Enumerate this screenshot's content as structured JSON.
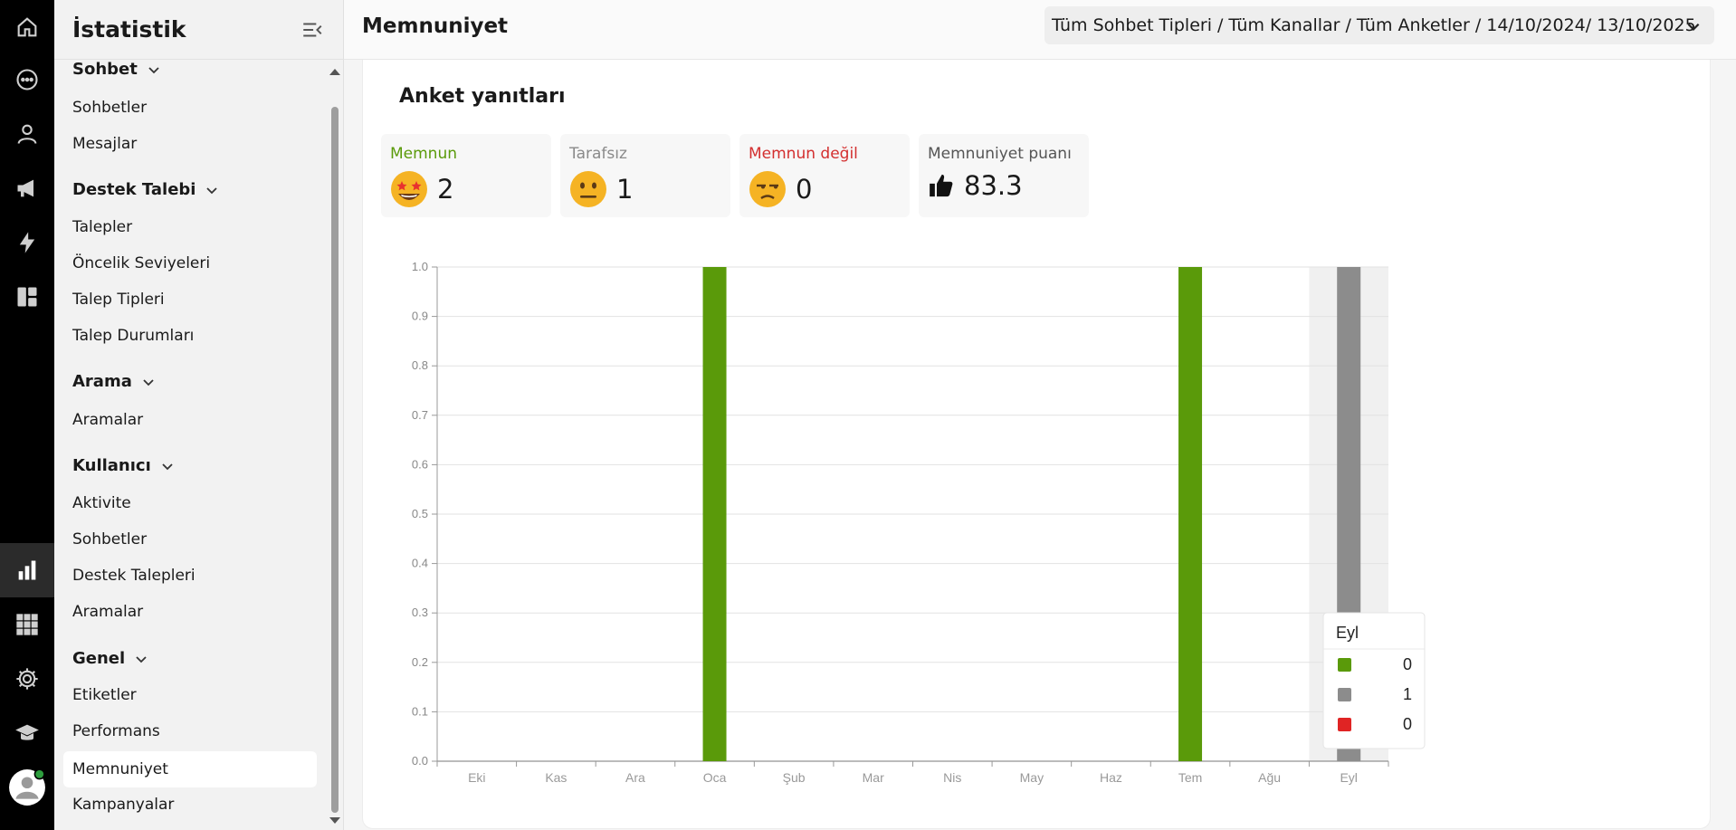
{
  "rail": {
    "icons": [
      "home-icon",
      "chat-icon",
      "user-icon",
      "megaphone-icon",
      "bolt-icon",
      "dashboard-icon",
      "bar-chart-icon",
      "apps-grid-icon",
      "gear-icon",
      "graduation-cap-icon",
      "avatar-icon"
    ],
    "active": "bar-chart-icon",
    "status_color": "#2e9e3e"
  },
  "sidebar": {
    "title": "İstatistik",
    "sections": [
      {
        "label": "Sohbet",
        "items": [
          "Sohbetler",
          "Mesajlar"
        ]
      },
      {
        "label": "Destek Talebi",
        "items": [
          "Talepler",
          "Öncelik Seviyeleri",
          "Talep Tipleri",
          "Talep Durumları"
        ]
      },
      {
        "label": "Arama",
        "items": [
          "Aramalar"
        ]
      },
      {
        "label": "Kullanıcı",
        "items": [
          "Aktivite",
          "Sohbetler",
          "Destek Talepleri",
          "Aramalar"
        ]
      },
      {
        "label": "Genel",
        "items": [
          "Etiketler",
          "Performans",
          "Memnuniyet",
          "Kampanyalar"
        ]
      }
    ],
    "active_item": "Memnuniyet"
  },
  "header": {
    "title": "Memnuniyet",
    "filters": [
      "Tüm Sohbet Tipleri /",
      "Tüm Kanallar /",
      "Tüm Anketler /",
      "14/10/2024/",
      "13/10/2025"
    ]
  },
  "card": {
    "title": "Anket yanıtları",
    "stats": [
      {
        "label": "Memnun",
        "value": "2",
        "color": "#5a9a0a",
        "icon": "star-struck-emoji-icon"
      },
      {
        "label": "Tarafsız",
        "value": "1",
        "color": "#8a8a8a",
        "icon": "neutral-face-emoji-icon"
      },
      {
        "label": "Memnun değil",
        "value": "0",
        "color": "#d32f2f",
        "icon": "unamused-face-emoji-icon"
      },
      {
        "label": "Memnuniyet puanı",
        "value": "83.3",
        "color": "#555555",
        "icon": "thumbs-up-icon"
      }
    ]
  },
  "chart_data": {
    "type": "bar",
    "categories": [
      "Eki",
      "Kas",
      "Ara",
      "Oca",
      "Şub",
      "Mar",
      "Nis",
      "May",
      "Haz",
      "Tem",
      "Ağu",
      "Eyl"
    ],
    "series": [
      {
        "color": "#5a9a0a",
        "values": [
          0,
          0,
          0,
          1,
          0,
          0,
          0,
          0,
          0,
          1,
          0,
          0
        ]
      },
      {
        "color": "#8c8c8c",
        "values": [
          0,
          0,
          0,
          0,
          0,
          0,
          0,
          0,
          0,
          0,
          0,
          1
        ]
      },
      {
        "color": "#e02424",
        "values": [
          0,
          0,
          0,
          0,
          0,
          0,
          0,
          0,
          0,
          0,
          0,
          0
        ]
      }
    ],
    "ylim": [
      0,
      1.0
    ],
    "yticks": [
      "0.0",
      "0.1",
      "0.2",
      "0.3",
      "0.4",
      "0.5",
      "0.6",
      "0.7",
      "0.8",
      "0.9",
      "1.0"
    ],
    "grid": true,
    "highlighted_category": "Eyl",
    "tooltip": {
      "title": "Eyl",
      "rows": [
        {
          "color": "#5a9a0a",
          "value": "0"
        },
        {
          "color": "#8c8c8c",
          "value": "1"
        },
        {
          "color": "#e02424",
          "value": "0"
        }
      ]
    }
  }
}
